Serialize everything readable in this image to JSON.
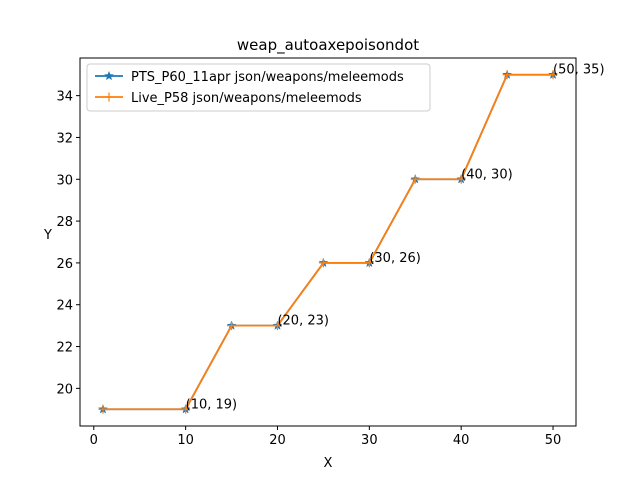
{
  "chart_data": {
    "type": "line",
    "title": "weap_autoaxepoisondot",
    "xlabel": "X",
    "ylabel": "Y",
    "xlim": [
      -1.5,
      52.5
    ],
    "ylim": [
      18.2,
      35.8
    ],
    "xticks": [
      0,
      10,
      20,
      30,
      40,
      50
    ],
    "yticks": [
      20,
      22,
      24,
      26,
      28,
      30,
      32,
      34
    ],
    "legend_position": "upper-left",
    "grid": false,
    "series": [
      {
        "name": "PTS_P60_11apr json/weapons/meleemods",
        "color": "#1f77b4",
        "marker": "star",
        "x": [
          1,
          10,
          15,
          20,
          25,
          30,
          35,
          40,
          45,
          50
        ],
        "y": [
          19,
          19,
          23,
          23,
          26,
          26,
          30,
          30,
          35,
          35
        ]
      },
      {
        "name": "Live_P58 json/weapons/meleemods",
        "color": "#ff7f0e",
        "marker": "plus",
        "x": [
          1,
          10,
          15,
          20,
          25,
          30,
          35,
          40,
          45,
          50
        ],
        "y": [
          19,
          19,
          23,
          23,
          26,
          26,
          30,
          30,
          35,
          35
        ]
      }
    ],
    "annotations": [
      {
        "x": 10,
        "y": 19,
        "text": "(10, 19)"
      },
      {
        "x": 20,
        "y": 23,
        "text": "(20, 23)"
      },
      {
        "x": 30,
        "y": 26,
        "text": "(30, 26)"
      },
      {
        "x": 40,
        "y": 30,
        "text": "(40, 30)"
      },
      {
        "x": 50,
        "y": 35,
        "text": "(50, 35)"
      }
    ]
  }
}
